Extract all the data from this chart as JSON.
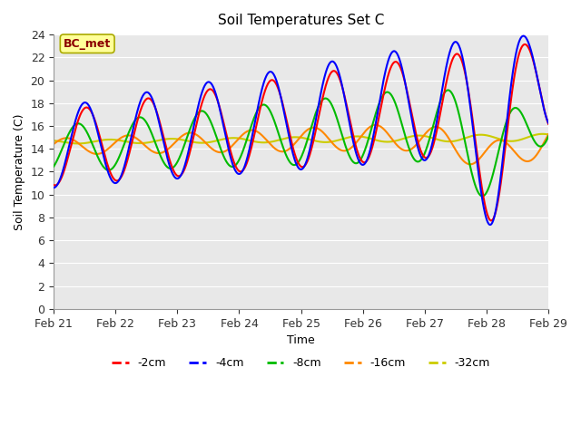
{
  "title": "Soil Temperatures Set C",
  "xlabel": "Time",
  "ylabel": "Soil Temperature (C)",
  "ylim": [
    0,
    24
  ],
  "yticks": [
    0,
    2,
    4,
    6,
    8,
    10,
    12,
    14,
    16,
    18,
    20,
    22,
    24
  ],
  "background_color": "#e8e8e8",
  "annotation_text": "BC_met",
  "annotation_color": "#8b0000",
  "annotation_bg": "#ffff99",
  "series_colors": {
    "-2cm": "#ff0000",
    "-4cm": "#0000ff",
    "-8cm": "#00bb00",
    "-16cm": "#ff8800",
    "-32cm": "#cccc00"
  },
  "x_start": 0,
  "x_end": 8,
  "xtick_labels": [
    "Feb 21",
    "Feb 22",
    "Feb 23",
    "Feb 24",
    "Feb 25",
    "Feb 26",
    "Feb 27",
    "Feb 28",
    "Feb 29"
  ],
  "xtick_positions": [
    0,
    1,
    2,
    3,
    4,
    5,
    6,
    7,
    8
  ]
}
